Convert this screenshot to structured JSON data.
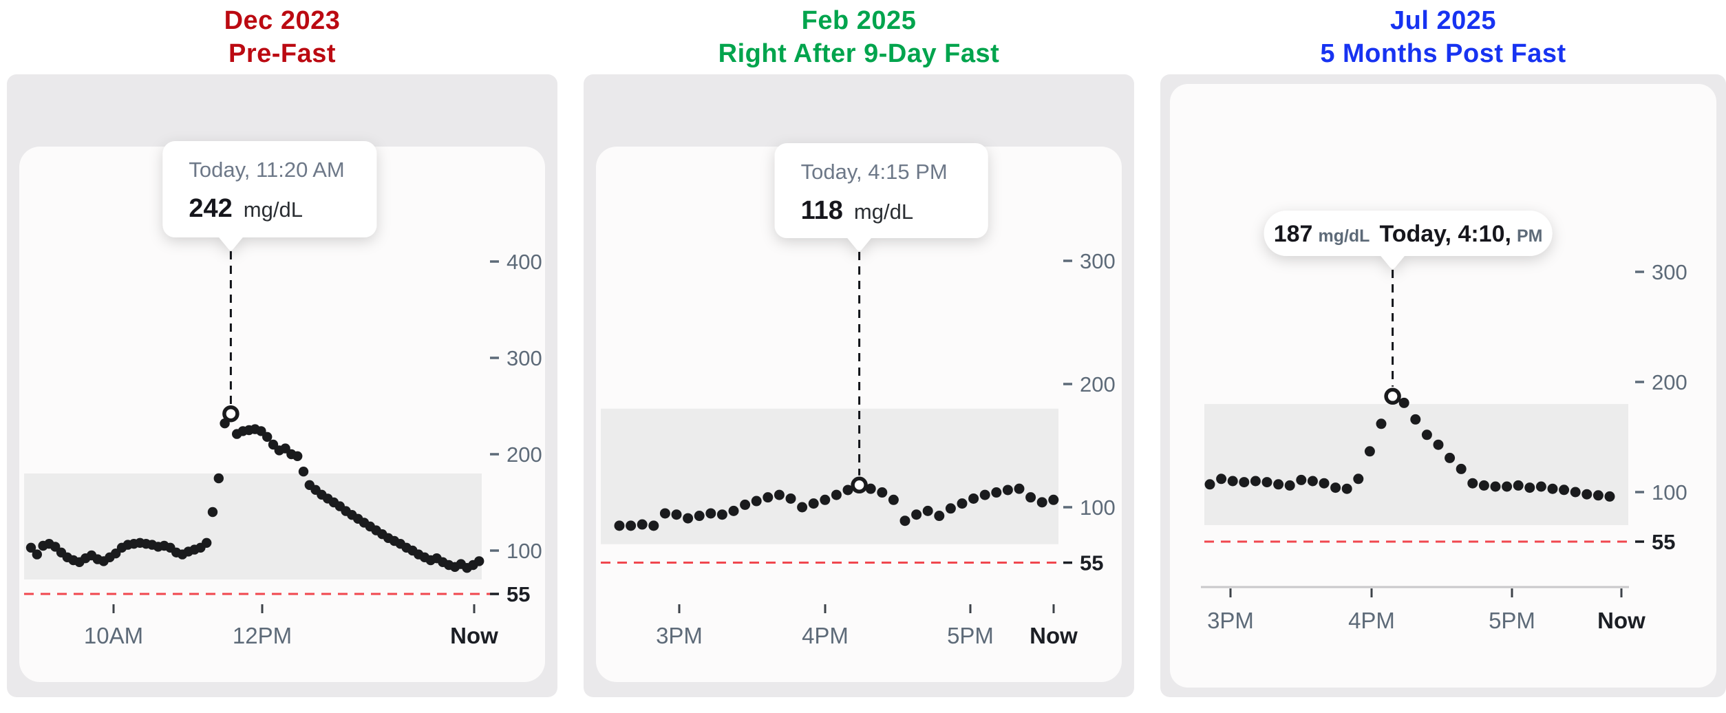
{
  "unit_label": "mg/dL",
  "chart_data": [
    {
      "type": "scatter",
      "title": "Dec 2023",
      "subtitle": "Pre-Fast",
      "title_color": "#bb0a12",
      "tooltip": {
        "layout": "stacked",
        "timestamp": "Today, 11:20 AM",
        "value": "242",
        "unit": "mg/dL"
      },
      "y_axis": {
        "tick_labels": [
          400,
          300,
          200,
          100
        ],
        "threshold_label": 55
      },
      "x_axis": {
        "labels": [
          "10AM",
          "12PM",
          "Now"
        ],
        "emphasized": "Now"
      },
      "target_range": {
        "low": 70,
        "high": 180
      },
      "low_threshold": 55,
      "ylim": [
        40,
        430
      ],
      "highlight_index": 33,
      "highlight_value": 242,
      "values_mgdl": [
        103,
        96,
        105,
        107,
        104,
        98,
        93,
        90,
        88,
        92,
        95,
        91,
        89,
        93,
        97,
        103,
        106,
        107,
        108,
        107,
        106,
        104,
        105,
        103,
        98,
        96,
        99,
        101,
        103,
        108,
        140,
        175,
        232,
        242,
        221,
        224,
        225,
        226,
        224,
        218,
        210,
        204,
        206,
        200,
        198,
        182,
        168,
        163,
        158,
        154,
        150,
        146,
        141,
        137,
        133,
        129,
        125,
        121,
        117,
        113,
        110,
        107,
        103,
        100,
        96,
        93,
        90,
        92,
        88,
        85,
        83,
        86,
        82,
        85,
        89
      ]
    },
    {
      "type": "scatter",
      "title": "Feb 2025",
      "subtitle": "Right After 9-Day Fast",
      "title_color": "#00a44d",
      "tooltip": {
        "layout": "stacked",
        "timestamp": "Today, 4:15 PM",
        "value": "118",
        "unit": "mg/dL"
      },
      "y_axis": {
        "tick_labels": [
          300,
          200,
          100
        ],
        "threshold_label": 55
      },
      "x_axis": {
        "labels": [
          "3PM",
          "4PM",
          "5PM",
          "Now"
        ],
        "emphasized": "Now"
      },
      "target_range": {
        "low": 70,
        "high": 180
      },
      "low_threshold": 55,
      "ylim": [
        40,
        320
      ],
      "highlight_index": 21,
      "highlight_value": 118,
      "values_mgdl": [
        85,
        85,
        86,
        85,
        95,
        94,
        91,
        93,
        95,
        94,
        97,
        102,
        105,
        108,
        110,
        107,
        100,
        103,
        106,
        110,
        114,
        118,
        115,
        112,
        106,
        89,
        94,
        97,
        93,
        99,
        103,
        107,
        110,
        112,
        114,
        115,
        108,
        104,
        106
      ]
    },
    {
      "type": "scatter",
      "title": "Jul 2025",
      "subtitle": "5 Months Post Fast",
      "title_color": "#1733f1",
      "tooltip": {
        "layout": "inline",
        "value": "187",
        "unit": "mg/dL",
        "timestamp_bold": "Today, 4:10",
        "timestamp_suffix": "PM"
      },
      "y_axis": {
        "tick_labels": [
          300,
          200,
          100
        ],
        "threshold_label": 55
      },
      "x_axis": {
        "labels": [
          "3PM",
          "4PM",
          "5PM",
          "Now"
        ],
        "emphasized": "Now"
      },
      "target_range": {
        "low": 70,
        "high": 180
      },
      "low_threshold": 55,
      "ylim": [
        40,
        320
      ],
      "highlight_index": 16,
      "highlight_value": 187,
      "values_mgdl": [
        107,
        112,
        110,
        109,
        110,
        109,
        107,
        106,
        111,
        110,
        108,
        104,
        103,
        112,
        137,
        162,
        187,
        181,
        166,
        152,
        143,
        131,
        121,
        108,
        106,
        105,
        105,
        106,
        104,
        105,
        103,
        102,
        100,
        98,
        97,
        96
      ]
    }
  ],
  "colors": {
    "outer_card": "#eae9eb",
    "inner_panel": "#fcfbfb",
    "target_band": "#ececec",
    "low_line_red": "#f0474e",
    "dot": "#1a1b1d",
    "axis_gray": "#5d6a78",
    "dark_text": "#1b1e24"
  }
}
